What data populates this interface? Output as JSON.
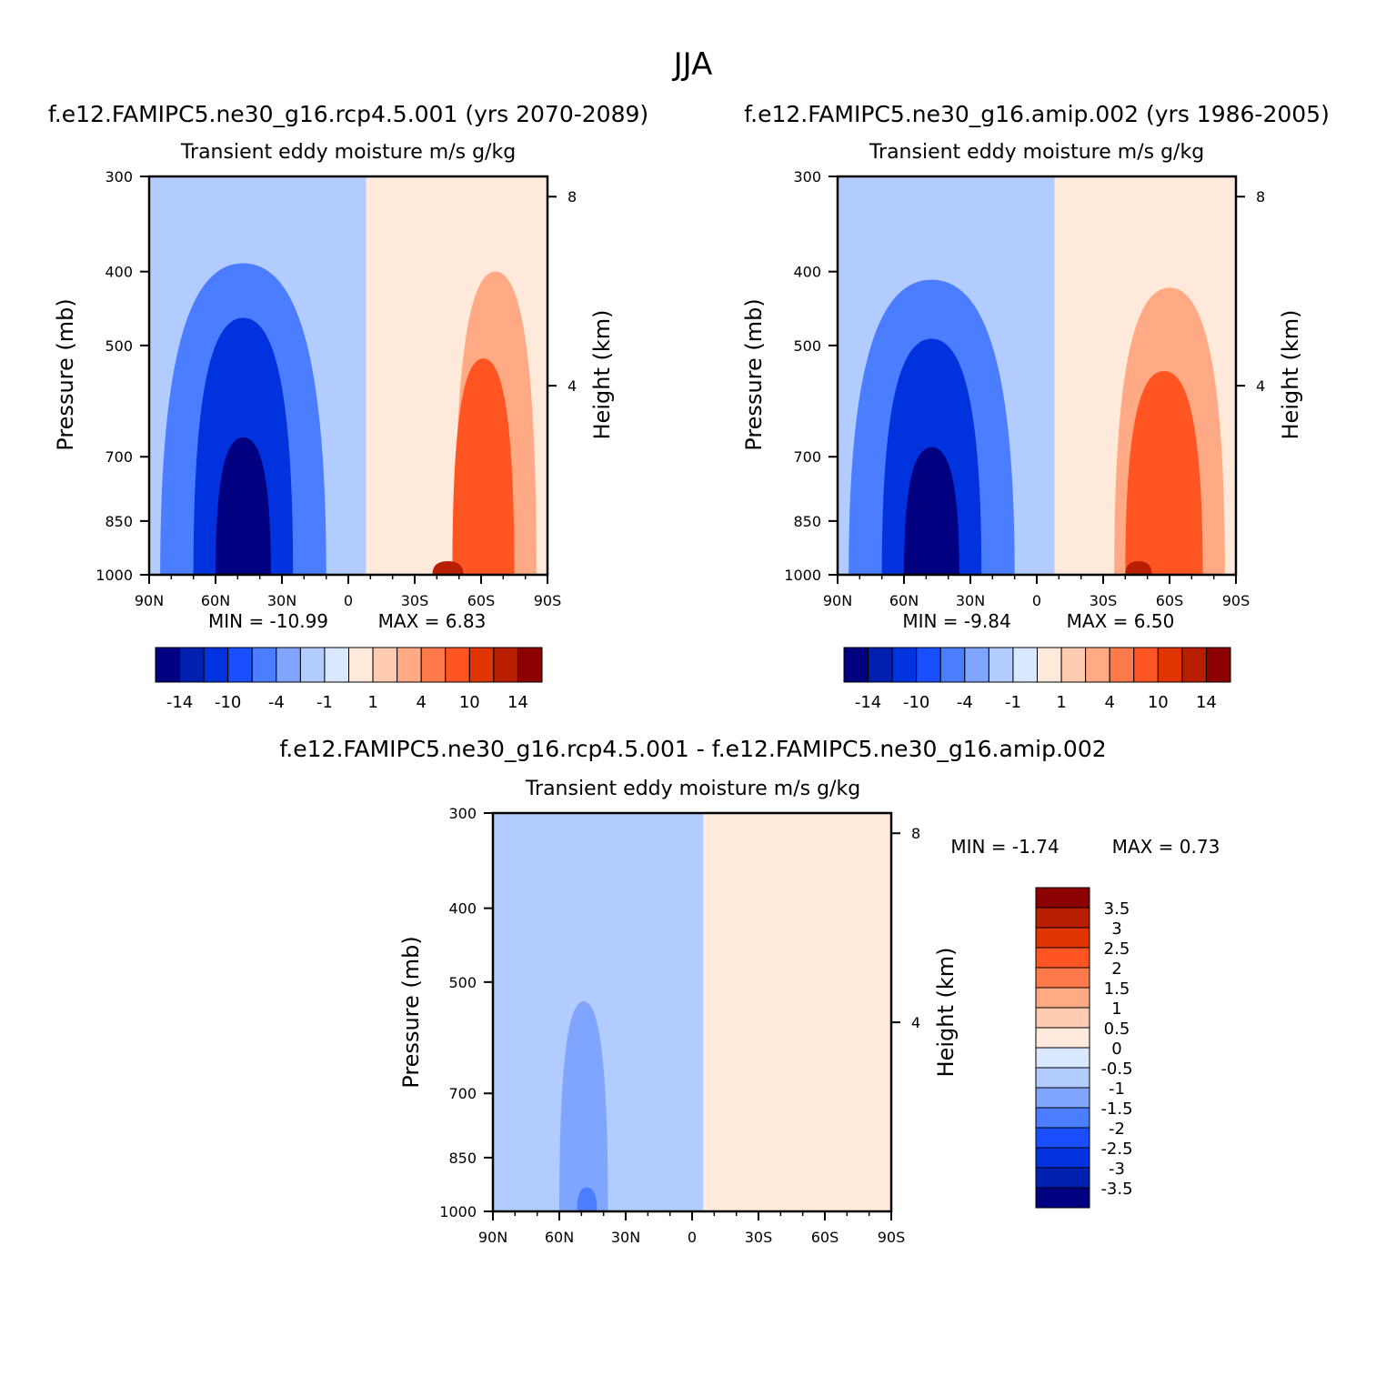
{
  "figure": {
    "title": "JJA",
    "colors": {
      "scale": [
        "#000080",
        "#0020B0",
        "#0033DD",
        "#1A4FFF",
        "#4A7DFF",
        "#7FA5FF",
        "#B3CCFF",
        "#D9E8FF",
        "#FFE9DA",
        "#FFCBB0",
        "#FFAA84",
        "#FF7A4A",
        "#FF5522",
        "#E03500",
        "#B81E00",
        "#8B0000"
      ]
    }
  },
  "chart_data": [
    {
      "type": "heatmap",
      "subtitle": "f.e12.FAMIPC5.ne30_g16.rcp4.5.001 (yrs 2070-2089)",
      "title": "Transient eddy moisture m/s g/kg",
      "ylabel": "Pressure (mb)",
      "y2label": "Height (km)",
      "x_ticks": [
        "90N",
        "60N",
        "30N",
        "0",
        "30S",
        "60S",
        "90S"
      ],
      "y_ticks": [
        "300",
        "400",
        "500",
        "700",
        "850",
        "1000"
      ],
      "y2_ticks": [
        "8",
        "4"
      ],
      "min_label": "MIN = -10.99",
      "max_label": "MAX = 6.83",
      "min": -10.99,
      "max": 6.83,
      "colorbar_labels": [
        "-14",
        "-10",
        "-4",
        "-1",
        "1",
        "4",
        "10",
        "14"
      ],
      "regions": [
        {
          "level": 1,
          "lat": [
            -90,
            -8
          ],
          "p": [
            300,
            1000
          ]
        },
        {
          "level": -1,
          "lat": [
            -8,
            90
          ],
          "p": [
            300,
            1000
          ]
        },
        {
          "level": 4,
          "lat": [
            -85,
            -48
          ],
          "p": [
            400,
            1000
          ]
        },
        {
          "level": 10,
          "lat": [
            -75,
            -47
          ],
          "p": [
            520,
            1000
          ]
        },
        {
          "level": 14,
          "lat": [
            -52,
            -38
          ],
          "p": [
            960,
            1000
          ]
        },
        {
          "level": -4,
          "lat": [
            10,
            85
          ],
          "p": [
            390,
            1000
          ]
        },
        {
          "level": -10,
          "lat": [
            25,
            70
          ],
          "p": [
            460,
            1000
          ]
        },
        {
          "level": -14,
          "lat": [
            35,
            60
          ],
          "p": [
            660,
            1000
          ]
        }
      ]
    },
    {
      "type": "heatmap",
      "subtitle": "f.e12.FAMIPC5.ne30_g16.amip.002 (yrs 1986-2005)",
      "title": "Transient eddy moisture m/s g/kg",
      "ylabel": "Pressure (mb)",
      "y2label": "Height (km)",
      "x_ticks": [
        "90N",
        "60N",
        "30N",
        "0",
        "30S",
        "60S",
        "90S"
      ],
      "y_ticks": [
        "300",
        "400",
        "500",
        "700",
        "850",
        "1000"
      ],
      "y2_ticks": [
        "8",
        "4"
      ],
      "min_label": "MIN = -9.84",
      "max_label": "MAX = 6.50",
      "min": -9.84,
      "max": 6.5,
      "colorbar_labels": [
        "-14",
        "-10",
        "-4",
        "-1",
        "1",
        "4",
        "10",
        "14"
      ],
      "regions": [
        {
          "level": 1,
          "lat": [
            -90,
            -8
          ],
          "p": [
            300,
            1000
          ]
        },
        {
          "level": -1,
          "lat": [
            -8,
            90
          ],
          "p": [
            300,
            1000
          ]
        },
        {
          "level": 4,
          "lat": [
            -85,
            -35
          ],
          "p": [
            420,
            1000
          ]
        },
        {
          "level": 10,
          "lat": [
            -75,
            -40
          ],
          "p": [
            540,
            1000
          ]
        },
        {
          "level": 14,
          "lat": [
            -52,
            -40
          ],
          "p": [
            960,
            1000
          ]
        },
        {
          "level": -4,
          "lat": [
            10,
            85
          ],
          "p": [
            410,
            1000
          ]
        },
        {
          "level": -10,
          "lat": [
            25,
            70
          ],
          "p": [
            490,
            1000
          ]
        },
        {
          "level": -14,
          "lat": [
            35,
            60
          ],
          "p": [
            680,
            1000
          ]
        }
      ]
    },
    {
      "type": "heatmap",
      "subtitle": "f.e12.FAMIPC5.ne30_g16.rcp4.5.001 - f.e12.FAMIPC5.ne30_g16.amip.002",
      "title": "Transient eddy moisture m/s g/kg",
      "ylabel": "Pressure (mb)",
      "y2label": "Height (km)",
      "x_ticks": [
        "90N",
        "60N",
        "30N",
        "0",
        "30S",
        "60S",
        "90S"
      ],
      "y_ticks": [
        "300",
        "400",
        "500",
        "700",
        "850",
        "1000"
      ],
      "y2_ticks": [
        "8",
        "4"
      ],
      "min_label": "MIN = -1.74",
      "max_label": "MAX = 0.73",
      "min": -1.74,
      "max": 0.73,
      "colorbar_labels": [
        "3.5",
        "3",
        "2.5",
        "2",
        "1.5",
        "1",
        "0.5",
        "0",
        "-0.5",
        "-1",
        "-1.5",
        "-2",
        "-2.5",
        "-3",
        "-3.5"
      ],
      "regions": [
        {
          "level": 0.5,
          "lat": [
            -90,
            -5
          ],
          "p": [
            300,
            1000
          ]
        },
        {
          "level": -0.5,
          "lat": [
            -5,
            90
          ],
          "p": [
            300,
            1000
          ]
        },
        {
          "level": -1,
          "lat": [
            38,
            60
          ],
          "p": [
            530,
            1000
          ]
        },
        {
          "level": -1.5,
          "lat": [
            43,
            52
          ],
          "p": [
            930,
            1000
          ]
        }
      ]
    }
  ]
}
